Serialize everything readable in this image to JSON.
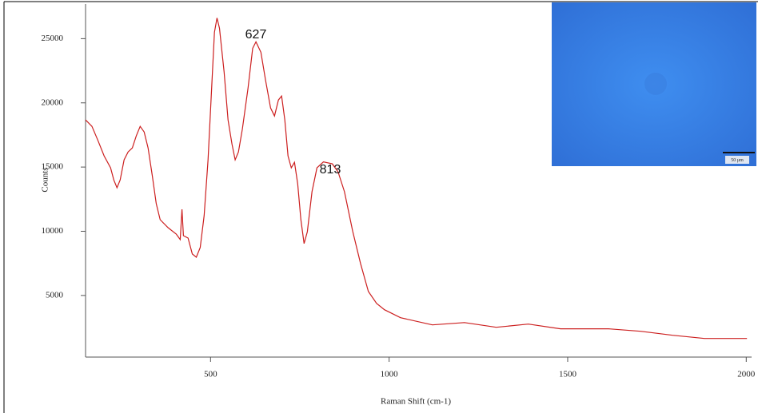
{
  "chart_data": {
    "type": "line",
    "x_label": "Raman Shift (cm-1)",
    "y_label": "Counts",
    "annotations": [
      "627",
      "813"
    ],
    "inset_scale_label": "50 µm",
    "xlim": [
      150,
      2015
    ],
    "ylim": [
      200,
      27700
    ],
    "xticks": [
      500,
      1000,
      1500,
      2000
    ],
    "yticks": [
      5000,
      10000,
      15000,
      20000,
      25000
    ],
    "series": [
      {
        "color": "#cc1f1f",
        "x": [
          150,
          168,
          184,
          202,
          220,
          229,
          238,
          247,
          258,
          269,
          281,
          292,
          303,
          314,
          325,
          337,
          348,
          359,
          381,
          404,
          415,
          420,
          424,
          437,
          449,
          460,
          471,
          482,
          493,
          502,
          511,
          518,
          525,
          538,
          549,
          560,
          569,
          578,
          589,
          605,
          618,
          627,
          641,
          654,
          668,
          679,
          690,
          699,
          708,
          717,
          726,
          735,
          744,
          753,
          762,
          771,
          784,
          798,
          816,
          841,
          857,
          875,
          898,
          920,
          942,
          965,
          987,
          1032,
          1121,
          1211,
          1300,
          1390,
          1480,
          1614,
          1704,
          1794,
          1883,
          2002
        ],
        "values": [
          18670,
          18170,
          17110,
          15870,
          14940,
          14000,
          13390,
          14000,
          15560,
          16180,
          16490,
          17420,
          18170,
          17730,
          16490,
          14320,
          12150,
          10900,
          10280,
          9780,
          9350,
          11710,
          9660,
          9470,
          8230,
          7980,
          8730,
          11210,
          15560,
          20530,
          25500,
          26610,
          25810,
          22390,
          18670,
          16800,
          15560,
          16180,
          17950,
          21150,
          24250,
          24750,
          23940,
          21770,
          19600,
          18980,
          20220,
          20530,
          18670,
          15870,
          14940,
          15370,
          13700,
          10900,
          9040,
          9970,
          13080,
          14940,
          15400,
          15250,
          14630,
          13080,
          10000,
          7490,
          5310,
          4380,
          3890,
          3270,
          2710,
          2890,
          2520,
          2770,
          2400,
          2400,
          2210,
          1900,
          1650,
          1650
        ]
      }
    ]
  }
}
